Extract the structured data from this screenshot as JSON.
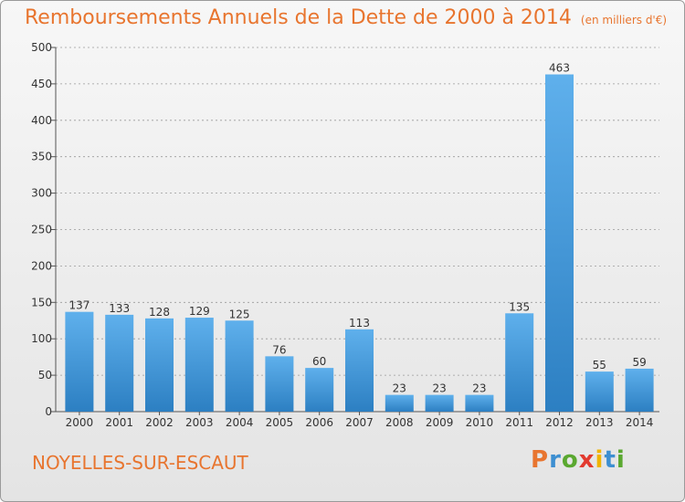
{
  "header": {
    "title": "Remboursements Annuels de la Dette de 2000 à 2014",
    "subtitle": "(en milliers d'€)"
  },
  "footer": {
    "commune": "NOYELLES-SUR-ESCAUT",
    "logo_letters": [
      "P",
      "r",
      "o",
      "x",
      "i",
      "t",
      "i"
    ],
    "logo_colors": [
      "#e8752f",
      "#3d8fd1",
      "#5aa830",
      "#e23a2f",
      "#f0b400",
      "#3d8fd1",
      "#5aa830"
    ]
  },
  "colors": {
    "bar_top": "#5fb0ec",
    "bar_bottom": "#2c7fc2",
    "title": "#e8752f",
    "grid": "#9a9a9a"
  },
  "chart_data": {
    "type": "bar",
    "title": "Remboursements Annuels de la Dette de 2000 à 2014",
    "subtitle": "(en milliers d'€)",
    "xlabel": "",
    "ylabel": "",
    "ylim": [
      0,
      500
    ],
    "yticks": [
      0,
      50,
      100,
      150,
      200,
      250,
      300,
      350,
      400,
      450,
      500
    ],
    "grid": true,
    "categories": [
      "2000",
      "2001",
      "2002",
      "2003",
      "2004",
      "2005",
      "2006",
      "2007",
      "2008",
      "2009",
      "2010",
      "2011",
      "2012",
      "2013",
      "2014"
    ],
    "values": [
      137,
      133,
      128,
      129,
      125,
      76,
      60,
      113,
      23,
      23,
      23,
      135,
      463,
      55,
      59
    ]
  }
}
